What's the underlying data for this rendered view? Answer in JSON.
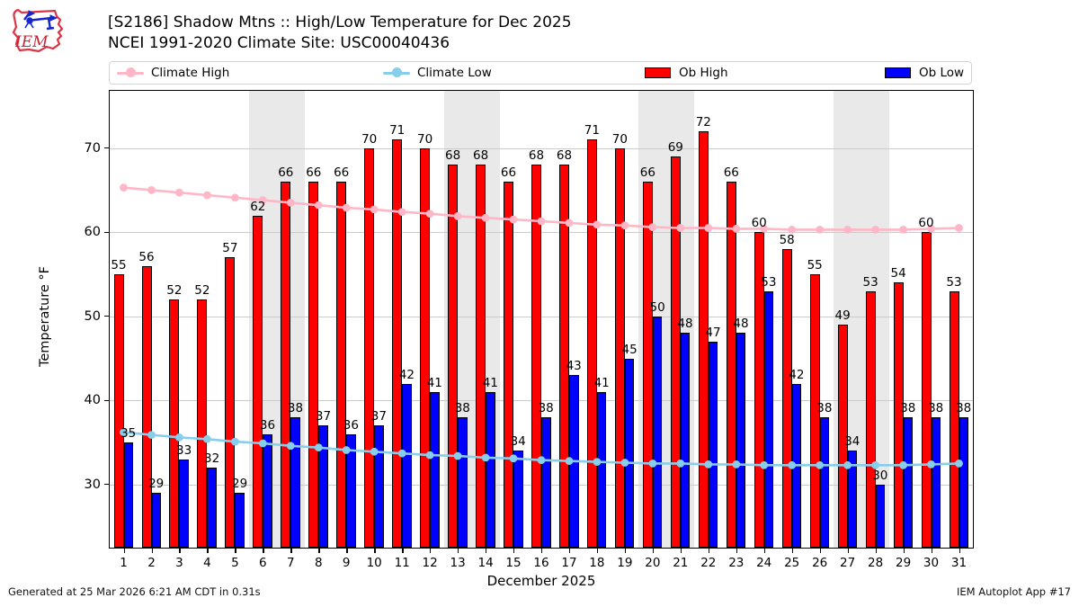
{
  "header": {
    "title_line1": "[S2186] Shadow Mtns :: High/Low Temperature for Dec 2025",
    "title_line2": "NCEI 1991-2020 Climate Site: USC00040436"
  },
  "logo": {
    "text": "IEM"
  },
  "legend": {
    "items": [
      {
        "label": "Climate High",
        "type": "line",
        "color": "#ffb6c6"
      },
      {
        "label": "Climate Low",
        "type": "line",
        "color": "#87ceeb"
      },
      {
        "label": "Ob High",
        "type": "patch",
        "color": "#ff0000"
      },
      {
        "label": "Ob Low",
        "type": "patch",
        "color": "#0000ff"
      }
    ]
  },
  "footer": {
    "left": "Generated at 25 Mar 2026 6:21 AM CDT in 0.31s",
    "right": "IEM Autoplot App #17"
  },
  "chart_data": {
    "type": "bar",
    "title": "[S2186] Shadow Mtns :: High/Low Temperature for Dec 2025",
    "subtitle": "NCEI 1991-2020 Climate Site: USC00040436",
    "xlabel": "December 2025",
    "ylabel": "Temperature °F",
    "ylim": [
      22.5,
      76.8
    ],
    "yticks": [
      30,
      40,
      50,
      60,
      70
    ],
    "grid": true,
    "legend_position": "top",
    "x": [
      1,
      2,
      3,
      4,
      5,
      6,
      7,
      8,
      9,
      10,
      11,
      12,
      13,
      14,
      15,
      16,
      17,
      18,
      19,
      20,
      21,
      22,
      23,
      24,
      25,
      26,
      27,
      28,
      29,
      30,
      31
    ],
    "weekend_bands": [
      [
        6,
        7
      ],
      [
        13,
        14
      ],
      [
        20,
        21
      ],
      [
        27,
        28
      ]
    ],
    "series": [
      {
        "name": "Ob High",
        "type": "bar",
        "color": "#ff0000",
        "values": [
          55,
          56,
          52,
          52,
          57,
          62,
          66,
          66,
          66,
          70,
          71,
          70,
          68,
          68,
          66,
          68,
          68,
          71,
          70,
          66,
          69,
          72,
          66,
          60,
          58,
          55,
          49,
          53,
          54,
          60,
          53
        ]
      },
      {
        "name": "Ob Low",
        "type": "bar",
        "color": "#0000ff",
        "values": [
          35,
          29,
          33,
          32,
          29,
          36,
          38,
          37,
          36,
          37,
          42,
          41,
          38,
          41,
          34,
          38,
          43,
          41,
          45,
          50,
          48,
          47,
          48,
          53,
          42,
          38,
          34,
          30,
          38,
          38,
          38
        ]
      },
      {
        "name": "Climate High",
        "type": "line",
        "color": "#ffb6c6",
        "values": [
          65.3,
          65.0,
          64.7,
          64.4,
          64.1,
          63.8,
          63.5,
          63.2,
          62.9,
          62.7,
          62.4,
          62.2,
          61.9,
          61.7,
          61.5,
          61.3,
          61.1,
          60.9,
          60.8,
          60.6,
          60.5,
          60.5,
          60.4,
          60.4,
          60.3,
          60.3,
          60.3,
          60.3,
          60.3,
          60.4,
          60.5
        ]
      },
      {
        "name": "Climate Low",
        "type": "line",
        "color": "#87ceeb",
        "values": [
          36.2,
          35.9,
          35.6,
          35.4,
          35.1,
          34.9,
          34.6,
          34.4,
          34.1,
          33.9,
          33.7,
          33.5,
          33.4,
          33.2,
          33.1,
          32.9,
          32.8,
          32.7,
          32.6,
          32.5,
          32.5,
          32.4,
          32.4,
          32.3,
          32.3,
          32.3,
          32.3,
          32.3,
          32.3,
          32.4,
          32.5
        ]
      }
    ]
  }
}
